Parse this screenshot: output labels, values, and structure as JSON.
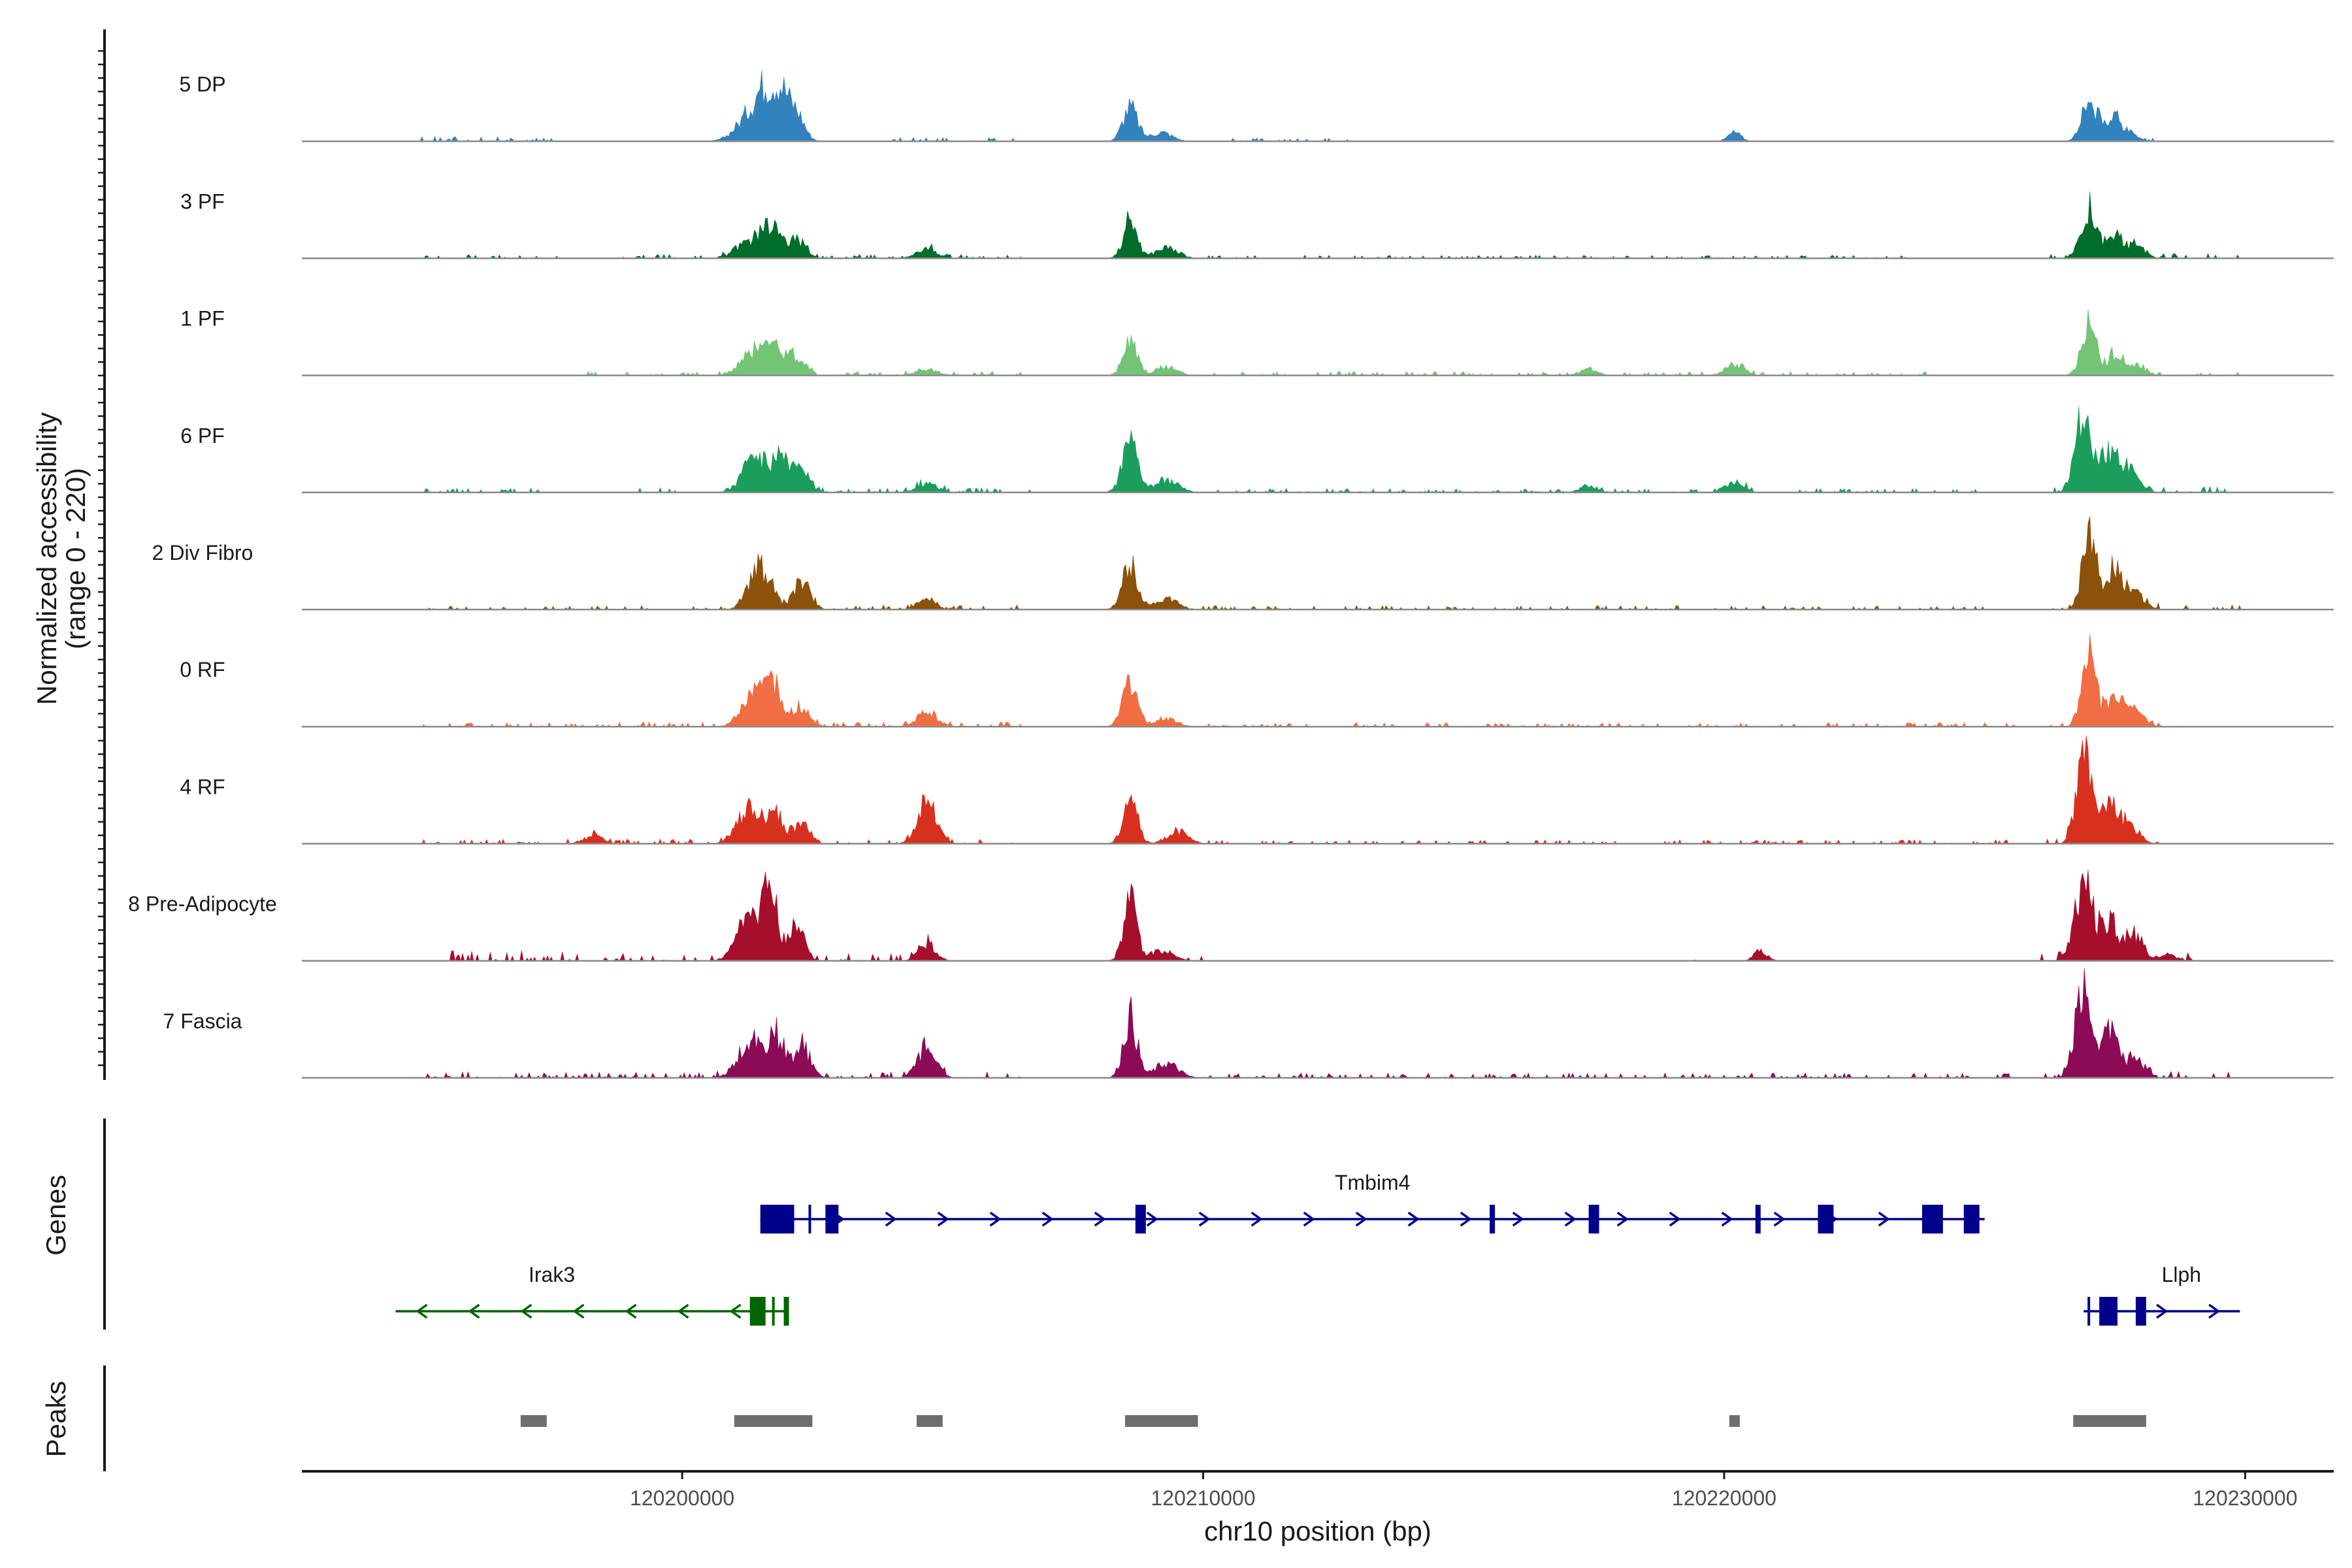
{
  "chart_data": {
    "type": "area",
    "title": "",
    "xlabel": "chr10 position (bp)",
    "ylabel_line1": "Normalized accessibility",
    "ylabel_line2": "(range 0 - 220)",
    "ylim": [
      0,
      220
    ],
    "xlim": [
      120192700,
      120231700
    ],
    "x_ticks": [
      120200000,
      120210000,
      120220000,
      120230000
    ],
    "x_tick_labels": [
      "120200000",
      "120210000",
      "120220000",
      "120230000"
    ],
    "tracks": [
      {
        "name": "5 DP",
        "color": "#3182bd",
        "peaks": [
          [
            120201300,
            70,
            260
          ],
          [
            120201600,
            110,
            180
          ],
          [
            120201900,
            120,
            150
          ],
          [
            120202200,
            75,
            150
          ],
          [
            120208600,
            95,
            140
          ],
          [
            120209200,
            25,
            200
          ],
          [
            120220200,
            25,
            120
          ],
          [
            120227000,
            110,
            140
          ],
          [
            120227400,
            60,
            150
          ],
          [
            120227700,
            35,
            160
          ]
        ],
        "noise": [
          [
            120195000,
            120197500,
            12
          ],
          [
            120204000,
            120206500,
            10
          ],
          [
            120210500,
            120213000,
            8
          ],
          [
            120226200,
            120228300,
            10
          ]
        ]
      },
      {
        "name": "3 PF",
        "color": "#006d2c",
        "peaks": [
          [
            120201300,
            50,
            250
          ],
          [
            120201700,
            80,
            170
          ],
          [
            120202200,
            55,
            150
          ],
          [
            120204700,
            25,
            200
          ],
          [
            120208600,
            110,
            130
          ],
          [
            120209300,
            30,
            220
          ],
          [
            120227000,
            140,
            150
          ],
          [
            120227500,
            60,
            150
          ],
          [
            120227900,
            35,
            170
          ]
        ],
        "noise": [
          [
            120195000,
            120197800,
            10
          ],
          [
            120198500,
            120206500,
            10
          ],
          [
            120210000,
            120223500,
            8
          ],
          [
            120226200,
            120229900,
            12
          ]
        ]
      },
      {
        "name": "1 PF",
        "color": "#74c476",
        "peaks": [
          [
            120201400,
            70,
            250
          ],
          [
            120201800,
            65,
            160
          ],
          [
            120202200,
            55,
            150
          ],
          [
            120204700,
            18,
            200
          ],
          [
            120208600,
            90,
            140
          ],
          [
            120209300,
            25,
            200
          ],
          [
            120217400,
            18,
            160
          ],
          [
            120220200,
            30,
            180
          ],
          [
            120227000,
            140,
            140
          ],
          [
            120227500,
            60,
            150
          ],
          [
            120227900,
            30,
            160
          ]
        ],
        "noise": [
          [
            120198000,
            120206500,
            10
          ],
          [
            120210000,
            120224000,
            10
          ],
          [
            120226200,
            120229900,
            10
          ]
        ]
      },
      {
        "name": "6 PF",
        "color": "#1b9e5b",
        "peaks": [
          [
            120201400,
            95,
            230
          ],
          [
            120201900,
            85,
            170
          ],
          [
            120202300,
            60,
            150
          ],
          [
            120204700,
            25,
            190
          ],
          [
            120208600,
            135,
            150
          ],
          [
            120209300,
            35,
            220
          ],
          [
            120217400,
            20,
            160
          ],
          [
            120220200,
            30,
            180
          ],
          [
            120226900,
            210,
            160
          ],
          [
            120227400,
            110,
            170
          ],
          [
            120227800,
            55,
            170
          ]
        ],
        "noise": [
          [
            120195000,
            120197500,
            12
          ],
          [
            120198500,
            120206700,
            12
          ],
          [
            120210000,
            120225000,
            10
          ],
          [
            120226200,
            120229800,
            15
          ]
        ]
      },
      {
        "name": "2 Div Fibro",
        "color": "#8c510a",
        "peaks": [
          [
            120201500,
            120,
            210
          ],
          [
            120202300,
            80,
            160
          ],
          [
            120204700,
            25,
            170
          ],
          [
            120208600,
            125,
            150
          ],
          [
            120209300,
            30,
            220
          ],
          [
            120227000,
            230,
            130
          ],
          [
            120227500,
            120,
            150
          ],
          [
            120227900,
            45,
            170
          ]
        ],
        "noise": [
          [
            120195000,
            120199500,
            10
          ],
          [
            120200000,
            120206500,
            12
          ],
          [
            120210000,
            120225000,
            10
          ],
          [
            120226200,
            120229900,
            15
          ]
        ]
      },
      {
        "name": "0 RF",
        "color": "#f16d43",
        "peaks": [
          [
            120201400,
            95,
            240
          ],
          [
            120201800,
            95,
            160
          ],
          [
            120202300,
            60,
            150
          ],
          [
            120204700,
            40,
            190
          ],
          [
            120208600,
            135,
            140
          ],
          [
            120209300,
            25,
            200
          ],
          [
            120227000,
            210,
            140
          ],
          [
            120227500,
            85,
            150
          ],
          [
            120227900,
            40,
            170
          ]
        ],
        "noise": [
          [
            120195000,
            120206500,
            12
          ],
          [
            120210000,
            120226000,
            10
          ],
          [
            120226200,
            120228500,
            12
          ]
        ]
      },
      {
        "name": "4 RF",
        "color": "#d7301f",
        "peaks": [
          [
            120198300,
            25,
            170
          ],
          [
            120201300,
            95,
            230
          ],
          [
            120201800,
            75,
            160
          ],
          [
            120202300,
            60,
            150
          ],
          [
            120204700,
            120,
            180
          ],
          [
            120208600,
            150,
            130
          ],
          [
            120209500,
            35,
            200
          ],
          [
            120226900,
            250,
            140
          ],
          [
            120227400,
            120,
            160
          ],
          [
            120227800,
            50,
            170
          ]
        ],
        "noise": [
          [
            120195000,
            120206500,
            12
          ],
          [
            120210000,
            120225500,
            10
          ],
          [
            120226200,
            120228500,
            15
          ]
        ]
      },
      {
        "name": "8 Pre-Adipocyte",
        "color": "#a50f2b",
        "peaks": [
          [
            120201300,
            110,
            240
          ],
          [
            120201700,
            175,
            140
          ],
          [
            120202200,
            90,
            150
          ],
          [
            120204700,
            50,
            160
          ],
          [
            120208600,
            165,
            130
          ],
          [
            120209200,
            30,
            220
          ],
          [
            120220700,
            30,
            120
          ],
          [
            120226900,
            220,
            170
          ],
          [
            120227400,
            100,
            180
          ],
          [
            120227900,
            60,
            160
          ],
          [
            120228500,
            20,
            160
          ]
        ],
        "noise": [
          [
            120195500,
            120198500,
            25
          ],
          [
            120198500,
            120205000,
            18
          ],
          [
            120209500,
            120210000,
            15
          ],
          [
            120219000,
            120219500,
            15
          ],
          [
            120226000,
            120229000,
            20
          ]
        ]
      },
      {
        "name": "7 Fascia",
        "color": "#8b0b56",
        "peaks": [
          [
            120201300,
            95,
            230
          ],
          [
            120201800,
            120,
            160
          ],
          [
            120202300,
            85,
            160
          ],
          [
            120204700,
            85,
            180
          ],
          [
            120208600,
            170,
            130
          ],
          [
            120209300,
            40,
            220
          ],
          [
            120226900,
            270,
            150
          ],
          [
            120227400,
            130,
            160
          ],
          [
            120227900,
            55,
            170
          ]
        ],
        "noise": [
          [
            120195000,
            120206500,
            15
          ],
          [
            120210000,
            120225500,
            12
          ],
          [
            120226000,
            120229900,
            18
          ]
        ]
      }
    ],
    "genes": [
      {
        "name": "Tmbim4",
        "strand": "+",
        "row": 1,
        "color": "#00008b",
        "start": 120201500,
        "end": 120225000,
        "exons": [
          [
            120201500,
            120202150
          ],
          [
            120202750,
            120203000
          ],
          [
            120208700,
            120208900
          ],
          [
            120215500,
            120215600
          ],
          [
            120217400,
            120217600
          ],
          [
            120220600,
            120220700
          ],
          [
            120221800,
            120222100
          ],
          [
            120223800,
            120224200
          ],
          [
            120224600,
            120224900
          ]
        ],
        "ticks": [
          120202450
        ]
      },
      {
        "name": "Irak3",
        "strand": "-",
        "row": 2,
        "color": "#006400",
        "start": 120194500,
        "end": 120202000,
        "exons": [
          [
            120201300,
            120201600
          ],
          [
            120201950,
            120202050
          ]
        ],
        "ticks": [
          120201750
        ]
      },
      {
        "name": "Llph",
        "strand": "+",
        "row": 2,
        "color": "#00008b",
        "start": 120226900,
        "end": 120229900,
        "exons": [
          [
            120227200,
            120227550
          ],
          [
            120227900,
            120228100
          ]
        ],
        "ticks": [
          120227000
        ]
      }
    ],
    "peak_regions": [
      [
        120196900,
        120197400
      ],
      [
        120201000,
        120202500
      ],
      [
        120204500,
        120205000
      ],
      [
        120208500,
        120209900
      ],
      [
        120220100,
        120220300
      ],
      [
        120226700,
        120228100
      ]
    ],
    "panel_labels": {
      "genes": "Genes",
      "peaks": "Peaks"
    }
  }
}
